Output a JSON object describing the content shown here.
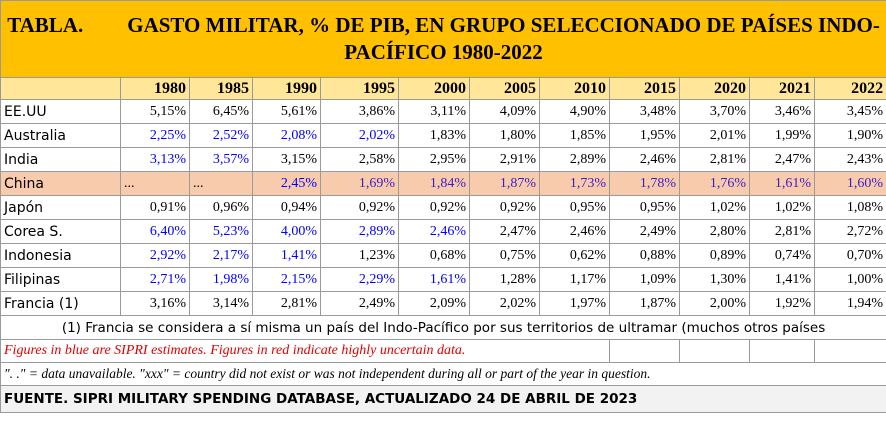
{
  "header": {
    "label": "TABLA.",
    "title": "GASTO MILITAR, % DE PIB, EN GRUPO SELECCIONADO DE PAÍSES INDO-PACÍFICO 1980-2022"
  },
  "table": {
    "columns": [
      "1980",
      "1985",
      "1990",
      "1995",
      "2000",
      "2005",
      "2010",
      "2015",
      "2020",
      "2021",
      "2022"
    ],
    "rows": [
      {
        "name": "EE.UU",
        "values": [
          "5,15%",
          "6,45%",
          "5,61%",
          "3,86%",
          "3,11%",
          "4,09%",
          "4,90%",
          "3,48%",
          "3,70%",
          "3,46%",
          "3,45%"
        ],
        "colors": [
          "#000000",
          "#000000",
          "#000000",
          "#000000",
          "#000000",
          "#000000",
          "#000000",
          "#000000",
          "#000000",
          "#000000",
          "#000000"
        ]
      },
      {
        "name": "Australia",
        "values": [
          "2,25%",
          "2,52%",
          "2,08%",
          "2,02%",
          "1,83%",
          "1,80%",
          "1,85%",
          "1,95%",
          "2,01%",
          "1,99%",
          "1,90%"
        ],
        "colors": [
          "#0000ff",
          "#0000ff",
          "#0000ff",
          "#0000ff",
          "#000000",
          "#000000",
          "#000000",
          "#000000",
          "#000000",
          "#000000",
          "#000000"
        ]
      },
      {
        "name": "India",
        "values": [
          "3,13%",
          "3,57%",
          "3,15%",
          "2,58%",
          "2,95%",
          "2,91%",
          "2,89%",
          "2,46%",
          "2,81%",
          "2,47%",
          "2,43%"
        ],
        "colors": [
          "#0000ff",
          "#0000ff",
          "#000000",
          "#000000",
          "#000000",
          "#000000",
          "#000000",
          "#000000",
          "#000000",
          "#000000",
          "#000000"
        ]
      },
      {
        "name": "China",
        "values": [
          "...",
          "...",
          "2,45%",
          "1,69%",
          "1,84%",
          "1,87%",
          "1,73%",
          "1,78%",
          "1,76%",
          "1,61%",
          "1,60%"
        ],
        "colors": [
          "#000000",
          "#000000",
          "#0000ff",
          "#3a1fc8",
          "#3a1fc8",
          "#3a1fc8",
          "#3a1fc8",
          "#3a1fc8",
          "#3a1fc8",
          "#3a1fc8",
          "#3a1fc8"
        ],
        "background": "#f8cbad"
      },
      {
        "name": "Japón",
        "values": [
          "0,91%",
          "0,96%",
          "0,94%",
          "0,92%",
          "0,92%",
          "0,92%",
          "0,95%",
          "0,95%",
          "1,02%",
          "1,02%",
          "1,08%"
        ],
        "colors": [
          "#000000",
          "#000000",
          "#000000",
          "#000000",
          "#000000",
          "#000000",
          "#000000",
          "#000000",
          "#000000",
          "#000000",
          "#000000"
        ]
      },
      {
        "name": "Corea S.",
        "values": [
          "6,40%",
          "5,23%",
          "4,00%",
          "2,89%",
          "2,46%",
          "2,47%",
          "2,46%",
          "2,49%",
          "2,80%",
          "2,81%",
          "2,72%"
        ],
        "colors": [
          "#0000ff",
          "#0000ff",
          "#0000ff",
          "#0000ff",
          "#0000ff",
          "#000000",
          "#000000",
          "#000000",
          "#000000",
          "#000000",
          "#000000"
        ]
      },
      {
        "name": "Indonesia",
        "values": [
          "2,92%",
          "2,17%",
          "1,41%",
          "1,23%",
          "0,68%",
          "0,75%",
          "0,62%",
          "0,88%",
          "0,89%",
          "0,74%",
          "0,70%"
        ],
        "colors": [
          "#0000ff",
          "#0000ff",
          "#0000ff",
          "#000000",
          "#000000",
          "#000000",
          "#000000",
          "#000000",
          "#000000",
          "#000000",
          "#000000"
        ]
      },
      {
        "name": "Filipinas",
        "values": [
          "2,71%",
          "1,98%",
          "2,15%",
          "2,29%",
          "1,61%",
          "1,28%",
          "1,17%",
          "1,09%",
          "1,30%",
          "1,41%",
          "1,00%"
        ],
        "colors": [
          "#0000ff",
          "#0000ff",
          "#0000ff",
          "#0000ff",
          "#0000ff",
          "#000000",
          "#000000",
          "#000000",
          "#000000",
          "#000000",
          "#000000"
        ]
      },
      {
        "name": "Francia (1)",
        "values": [
          "3,16%",
          "3,14%",
          "2,81%",
          "2,49%",
          "2,09%",
          "2,02%",
          "1,97%",
          "1,87%",
          "2,00%",
          "1,92%",
          "1,94%"
        ],
        "colors": [
          "#000000",
          "#000000",
          "#000000",
          "#000000",
          "#000000",
          "#000000",
          "#000000",
          "#000000",
          "#000000",
          "#000000",
          "#000000"
        ]
      }
    ]
  },
  "notes": {
    "footnote": "(1) Francia se considera a sí misma un país del Indo-Pacífico por sus territorios de ultramar (muchos otros países",
    "legend": "Figures in blue are SIPRI estimates. Figures in red indicate highly uncertain data.",
    "unavailable": "\". .\" = data unavailable. \"xxx\" = country did not exist or was not independent during all or part of the year in question.",
    "source": "FUENTE. SIPRI MILITARY SPENDING DATABASE, ACTUALIZADO 24 DE ABRIL DE 2023"
  }
}
